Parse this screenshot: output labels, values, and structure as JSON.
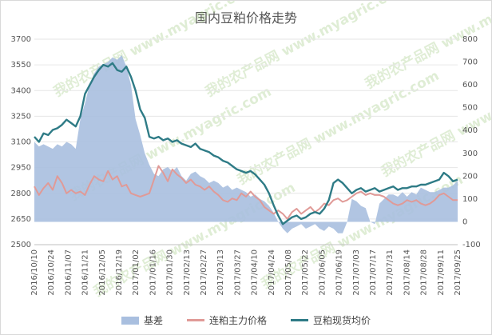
{
  "chart_data": {
    "type": "area+line",
    "title": "国内豆粕价格走势",
    "watermark": "我的农产品网 www.myagric.com",
    "yleft": {
      "ticks": [
        2500,
        2650,
        2800,
        2950,
        3100,
        3250,
        3400,
        3550,
        3700
      ],
      "lim": [
        2500,
        3700
      ]
    },
    "yright": {
      "ticks": [
        -100,
        0,
        100,
        200,
        300,
        400,
        500,
        600,
        700,
        800
      ],
      "lim": [
        -100,
        800
      ]
    },
    "x_ticks": [
      "2016/10/10",
      "2016/10/24",
      "2016/11/07",
      "2016/11/21",
      "2016/12/05",
      "2016/12/19",
      "2017/01/02",
      "2017/01/16",
      "2017/01/30",
      "2017/02/13",
      "2017/02/27",
      "2017/03/13",
      "2017/03/27",
      "2017/04/10",
      "2017/04/24",
      "2017/05/08",
      "2017/05/22",
      "2017/06/05",
      "2017/06/19",
      "2017/07/03",
      "2017/07/17",
      "2017/07/31",
      "2017/08/14",
      "2017/08/28",
      "2017/09/11",
      "2017/09/25"
    ],
    "series": [
      {
        "name": "基差",
        "type": "area",
        "axis": "right",
        "color": "#a9bfdf",
        "values": [
          350,
          330,
          340,
          330,
          320,
          340,
          330,
          350,
          340,
          320,
          450,
          520,
          600,
          650,
          680,
          690,
          700,
          720,
          710,
          730,
          680,
          600,
          450,
          380,
          300,
          250,
          210,
          200,
          230,
          240,
          220,
          240,
          200,
          180,
          210,
          220,
          200,
          190,
          170,
          180,
          170,
          150,
          160,
          140,
          150,
          140,
          130,
          110,
          120,
          100,
          90,
          70,
          40,
          0,
          -30,
          -50,
          -30,
          -20,
          -10,
          -30,
          -20,
          -10,
          -30,
          -40,
          -20,
          -30,
          -50,
          -50,
          0,
          100,
          90,
          70,
          60,
          0,
          -10,
          80,
          100,
          120,
          120,
          110,
          130,
          110,
          130,
          120,
          150,
          140,
          130,
          130,
          140,
          150,
          150,
          160,
          180
        ]
      },
      {
        "name": "连粕主力价格",
        "type": "line",
        "axis": "left",
        "color": "#e09a97",
        "values": [
          2840,
          2790,
          2830,
          2860,
          2820,
          2900,
          2860,
          2800,
          2820,
          2800,
          2810,
          2790,
          2850,
          2900,
          2880,
          2870,
          2930,
          2880,
          2900,
          2840,
          2850,
          2800,
          2790,
          2780,
          2790,
          2800,
          2880,
          2960,
          2920,
          2870,
          2940,
          2910,
          2890,
          2860,
          2880,
          2850,
          2840,
          2820,
          2840,
          2810,
          2790,
          2760,
          2750,
          2770,
          2760,
          2800,
          2780,
          2810,
          2780,
          2760,
          2720,
          2700,
          2680,
          2700,
          2680,
          2650,
          2690,
          2710,
          2680,
          2700,
          2720,
          2690,
          2710,
          2740,
          2730,
          2760,
          2770,
          2750,
          2760,
          2780,
          2800,
          2810,
          2790,
          2800,
          2790,
          2790,
          2780,
          2760,
          2740,
          2730,
          2740,
          2760,
          2750,
          2760,
          2740,
          2730,
          2740,
          2760,
          2790,
          2800,
          2780,
          2760,
          2760
        ]
      },
      {
        "name": "豆粕现货均价",
        "type": "line",
        "axis": "left",
        "color": "#2e7b86",
        "values": [
          3130,
          3100,
          3150,
          3140,
          3170,
          3180,
          3200,
          3230,
          3210,
          3190,
          3250,
          3380,
          3430,
          3480,
          3520,
          3550,
          3540,
          3560,
          3520,
          3510,
          3540,
          3480,
          3400,
          3290,
          3240,
          3130,
          3120,
          3130,
          3110,
          3120,
          3100,
          3110,
          3090,
          3080,
          3070,
          3090,
          3060,
          3050,
          3040,
          3020,
          3010,
          2990,
          2980,
          2960,
          2940,
          2930,
          2920,
          2930,
          2910,
          2880,
          2850,
          2800,
          2730,
          2670,
          2620,
          2640,
          2660,
          2670,
          2650,
          2660,
          2680,
          2690,
          2680,
          2710,
          2760,
          2860,
          2880,
          2860,
          2830,
          2800,
          2820,
          2830,
          2810,
          2820,
          2830,
          2810,
          2820,
          2830,
          2840,
          2820,
          2830,
          2830,
          2840,
          2840,
          2850,
          2850,
          2860,
          2870,
          2880,
          2920,
          2900,
          2870,
          2880
        ]
      }
    ],
    "legend": {
      "position": "bottom"
    }
  }
}
